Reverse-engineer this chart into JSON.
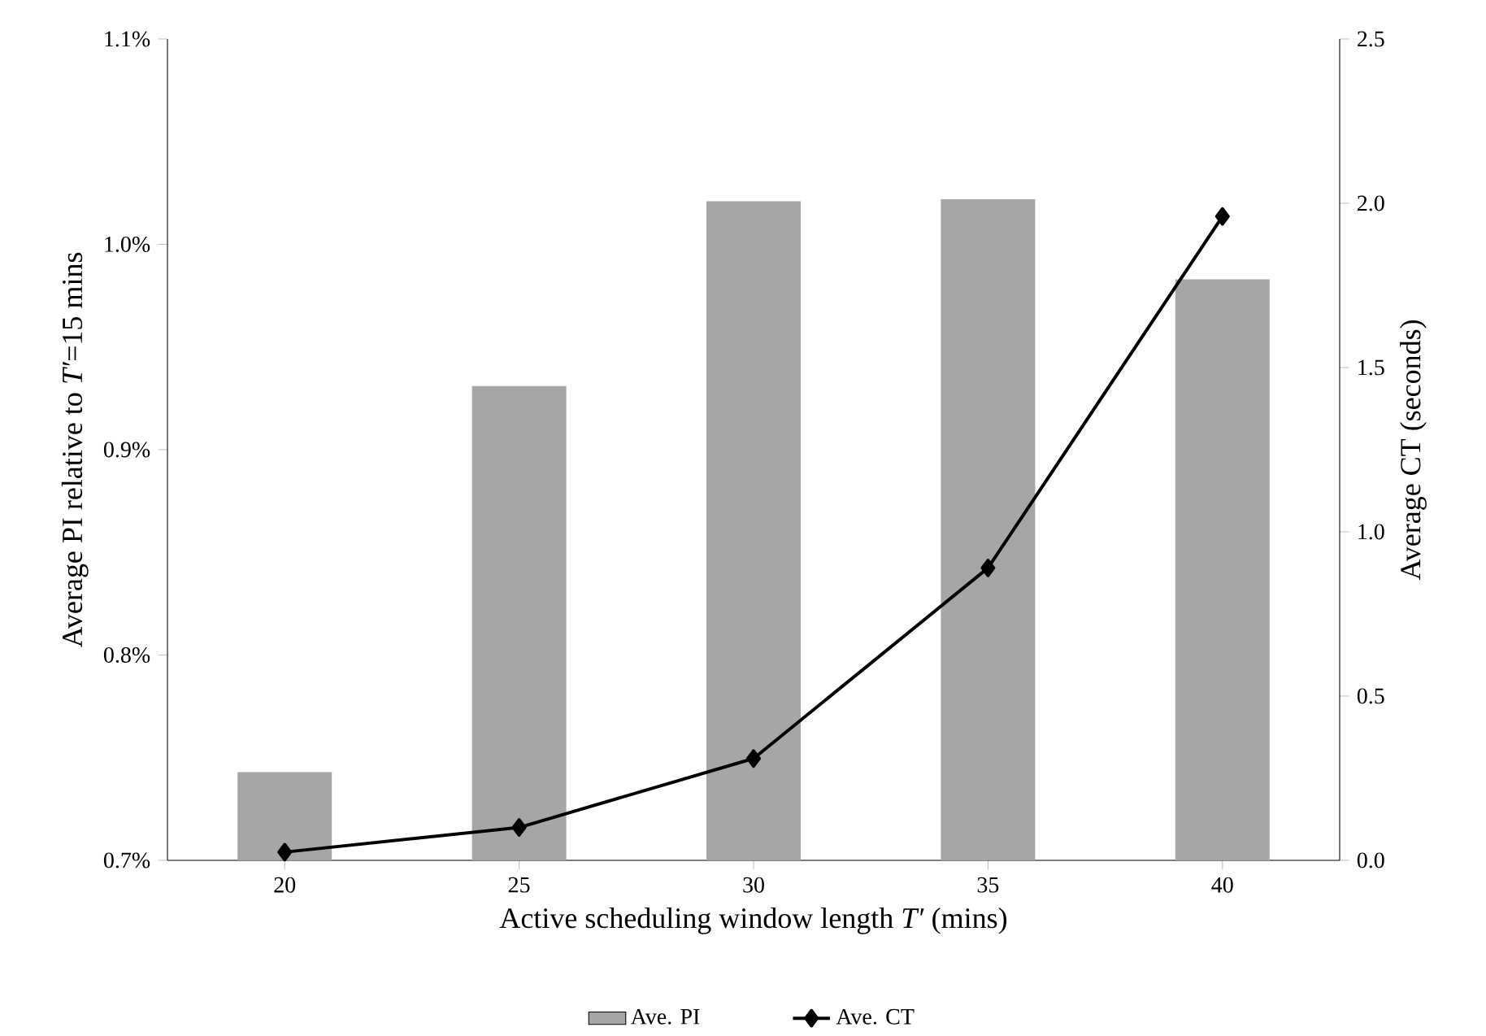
{
  "chart_data": {
    "type": "bar",
    "categories": [
      "20",
      "25",
      "30",
      "35",
      "40"
    ],
    "xlabel": "Active scheduling window length *T′* (mins)",
    "ylabel": "Average PI relative to *T′*=15 mins",
    "y2label": "Average CT (seconds)",
    "series": [
      {
        "name": "Ave. PI",
        "color": "#a6a6a6",
        "values": [
          0.743,
          0.931,
          1.021,
          1.022,
          0.983
        ]
      },
      {
        "name": "Ave. CT",
        "type": "line",
        "axis": "y2",
        "color": "#000000",
        "marker": "diamond",
        "values": [
          0.025,
          0.1,
          0.31,
          0.89,
          1.96
        ]
      }
    ],
    "ylim": [
      0.7,
      1.1
    ],
    "yticks": [
      {
        "value": 0.7,
        "label": "0.7%"
      },
      {
        "value": 0.8,
        "label": "0.8%"
      },
      {
        "value": 0.9,
        "label": "0.9%"
      },
      {
        "value": 1.0,
        "label": "1.0%"
      },
      {
        "value": 1.1,
        "label": "1.1%"
      }
    ],
    "y2lim": [
      0,
      2.5
    ],
    "y2ticks": [
      {
        "value": 0,
        "label": "0.0"
      },
      {
        "value": 0.5,
        "label": "0.5"
      },
      {
        "value": 1.0,
        "label": "1.0"
      },
      {
        "value": 1.5,
        "label": "1.5"
      },
      {
        "value": 2.0,
        "label": "2.0"
      },
      {
        "value": 2.5,
        "label": "2.5"
      }
    ],
    "legend": "bottom"
  }
}
